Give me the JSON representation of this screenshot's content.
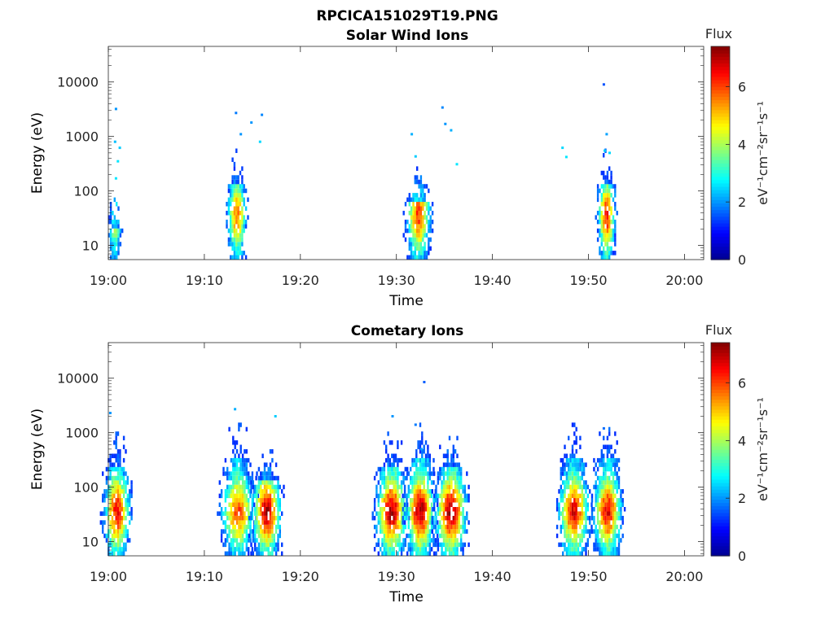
{
  "figure_title": "RPCICA151029T19.PNG",
  "colors": {
    "colormap": [
      "#00008f",
      "#0000ff",
      "#0080ff",
      "#00ffff",
      "#80ff80",
      "#ffff00",
      "#ff8000",
      "#ff0000",
      "#800000"
    ],
    "axis": "#262626",
    "background": "#ffffff"
  },
  "chart_data": [
    {
      "type": "heatmap",
      "title": "Solar Wind Ions",
      "xlabel": "Time",
      "ylabel": "Energy (eV)",
      "y_scale": "log",
      "ylim": [
        5.5,
        45000
      ],
      "y_ticks": [
        10,
        100,
        1000,
        10000
      ],
      "y_tick_labels": [
        "10",
        "100",
        "1000",
        "10000"
      ],
      "x_range_minutes": [
        0,
        62
      ],
      "x_ticks": [
        0,
        10,
        20,
        30,
        40,
        50,
        60
      ],
      "x_tick_labels": [
        "19:00",
        "19:10",
        "19:20",
        "19:30",
        "19:40",
        "19:50",
        "20:00"
      ],
      "colorbar": {
        "title": "Flux",
        "label": "eV⁻¹cm⁻²sr⁻¹s⁻¹",
        "range": [
          0,
          7.4
        ],
        "ticks": [
          0,
          2,
          4,
          6
        ],
        "tick_labels": [
          "0",
          "2",
          "4",
          "6"
        ]
      },
      "bursts": [
        {
          "t": 0.6,
          "flux": 5.0,
          "emax": 60,
          "hw": 0.6
        },
        {
          "t": 13.3,
          "flux": 5.6,
          "emax": 400,
          "hw": 0.9
        },
        {
          "t": 32.2,
          "flux": 6.1,
          "emax": 200,
          "hw": 1.1
        },
        {
          "t": 51.8,
          "flux": 6.3,
          "emax": 400,
          "hw": 0.8
        }
      ],
      "sparse_points": [
        [
          0.8,
          3200,
          2.0
        ],
        [
          0.7,
          800,
          2.3
        ],
        [
          1.2,
          620,
          2.4
        ],
        [
          1.0,
          350,
          2.6
        ],
        [
          0.8,
          170,
          2.6
        ],
        [
          13.3,
          2700,
          1.8
        ],
        [
          13.8,
          1100,
          2.0
        ],
        [
          14.9,
          1800,
          2.0
        ],
        [
          16.0,
          2500,
          1.9
        ],
        [
          15.8,
          800,
          2.5
        ],
        [
          31.6,
          1100,
          2.2
        ],
        [
          32.0,
          430,
          2.4
        ],
        [
          34.8,
          3400,
          1.9
        ],
        [
          35.1,
          1700,
          2.0
        ],
        [
          35.7,
          1300,
          2.2
        ],
        [
          36.3,
          310,
          2.6
        ],
        [
          47.3,
          620,
          2.5
        ],
        [
          47.7,
          420,
          2.6
        ],
        [
          51.6,
          9000,
          1.5
        ],
        [
          51.9,
          1100,
          2.1
        ],
        [
          51.7,
          550,
          2.4
        ],
        [
          52.2,
          500,
          2.5
        ]
      ]
    },
    {
      "type": "heatmap",
      "title": "Cometary Ions",
      "xlabel": "Time",
      "ylabel": "Energy (eV)",
      "y_scale": "log",
      "ylim": [
        5.5,
        45000
      ],
      "y_ticks": [
        10,
        100,
        1000,
        10000
      ],
      "y_tick_labels": [
        "10",
        "100",
        "1000",
        "10000"
      ],
      "x_range_minutes": [
        0,
        62
      ],
      "x_ticks": [
        0,
        10,
        20,
        30,
        40,
        50,
        60
      ],
      "x_tick_labels": [
        "19:00",
        "19:10",
        "19:20",
        "19:30",
        "19:40",
        "19:50",
        "20:00"
      ],
      "colorbar": {
        "title": "Flux",
        "label": "eV⁻¹cm⁻²sr⁻¹s⁻¹",
        "range": [
          0,
          7.4
        ],
        "ticks": [
          0,
          2,
          4,
          6
        ],
        "tick_labels": [
          "0",
          "2",
          "4",
          "6"
        ]
      },
      "bursts": [
        {
          "t": 0.8,
          "flux": 6.5,
          "emax": 800,
          "hw": 1.2
        },
        {
          "t": 13.4,
          "flux": 6.0,
          "emax": 1100,
          "hw": 1.5
        },
        {
          "t": 16.4,
          "flux": 7.0,
          "emax": 400,
          "hw": 1.3
        },
        {
          "t": 29.4,
          "flux": 7.0,
          "emax": 800,
          "hw": 1.4
        },
        {
          "t": 32.4,
          "flux": 7.1,
          "emax": 1000,
          "hw": 1.3
        },
        {
          "t": 35.6,
          "flux": 7.1,
          "emax": 700,
          "hw": 1.4
        },
        {
          "t": 48.4,
          "flux": 6.6,
          "emax": 1100,
          "hw": 1.4
        },
        {
          "t": 51.9,
          "flux": 6.6,
          "emax": 1100,
          "hw": 1.3
        }
      ],
      "sparse_points": [
        [
          0.2,
          2300,
          2.0
        ],
        [
          13.2,
          2700,
          2.2
        ],
        [
          17.4,
          2000,
          2.4
        ],
        [
          29.6,
          2000,
          2.0
        ],
        [
          32.0,
          1400,
          1.8
        ],
        [
          32.9,
          8500,
          1.6
        ],
        [
          32.6,
          500,
          2.1
        ],
        [
          51.6,
          1200,
          1.7
        ]
      ]
    }
  ]
}
